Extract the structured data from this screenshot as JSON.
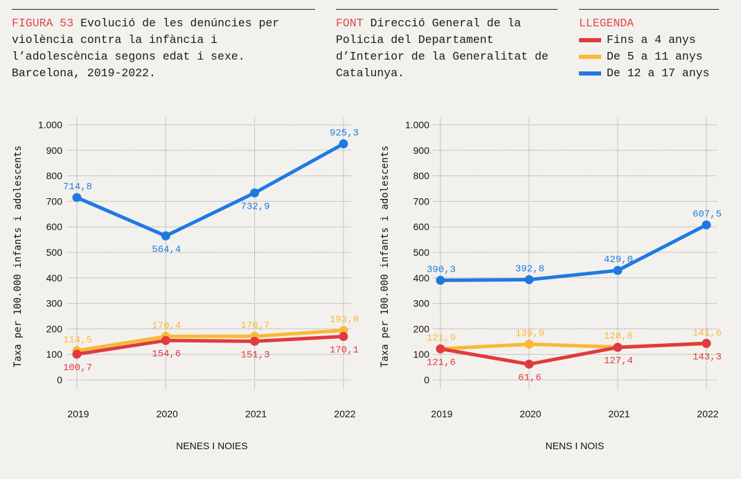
{
  "header": {
    "figure_tag": "FIGURA 53",
    "title": "Evolució de les denúncies per violència contra la infància i l’adolescència segons edat i sexe. Barcelona, 2019-2022.",
    "source_tag": "FONT",
    "source": "Direcció General de la Policia del Departament d’Interior de la Generalitat de Catalunya.",
    "legend_title": "LLEGENDA",
    "legend": [
      {
        "label": "Fins a 4 anys",
        "color": "#e03a3e"
      },
      {
        "label": "De 5 a 11 anys",
        "color": "#f9b934"
      },
      {
        "label": "De 12 a 17 anys",
        "color": "#1f7ae0"
      }
    ]
  },
  "chart_data": [
    {
      "type": "line",
      "title": "NENES I NOIES",
      "xlabel": "NENES I NOIES",
      "ylabel": "Taxa per 100.000 infants i adolescents",
      "categories": [
        "2019",
        "2020",
        "2021",
        "2022"
      ],
      "ylim": [
        0,
        1000
      ],
      "yticks": [
        "0",
        "100",
        "200",
        "300",
        "400",
        "500",
        "600",
        "700",
        "800",
        "900",
        "1.000"
      ],
      "grid": true,
      "series": [
        {
          "name": "Fins a 4 anys",
          "color": "#e03a3e",
          "values": [
            100.7,
            154.6,
            151.3,
            170.1
          ],
          "labels": [
            "100,7",
            "154,6",
            "151,3",
            "170,1"
          ],
          "label_pos": [
            "below",
            "below",
            "below",
            "below"
          ]
        },
        {
          "name": "De 5 a 11 anys",
          "color": "#f9b934",
          "values": [
            114.5,
            170.4,
            170.7,
            193.8
          ],
          "labels": [
            "114,5",
            "170,4",
            "170,7",
            "193,8"
          ],
          "label_pos": [
            "above",
            "above",
            "above",
            "above"
          ]
        },
        {
          "name": "De 12 a 17 anys",
          "color": "#1f7ae0",
          "values": [
            714.8,
            564.4,
            732.9,
            925.3
          ],
          "labels": [
            "714,8",
            "564,4",
            "732,9",
            "925,3"
          ],
          "label_pos": [
            "above",
            "below",
            "below",
            "above"
          ]
        }
      ]
    },
    {
      "type": "line",
      "title": "NENS I NOIS",
      "xlabel": "NENS I NOIS",
      "ylabel": "Taxa per 100.000 infants i adolescents",
      "categories": [
        "2019",
        "2020",
        "2021",
        "2022"
      ],
      "ylim": [
        0,
        1000
      ],
      "yticks": [
        "0",
        "100",
        "200",
        "300",
        "400",
        "500",
        "600",
        "700",
        "800",
        "900",
        "1.000"
      ],
      "grid": true,
      "series": [
        {
          "name": "Fins a 4 anys",
          "color": "#e03a3e",
          "values": [
            121.6,
            61.6,
            127.4,
            143.3
          ],
          "labels": [
            "121,6",
            "61,6",
            "127,4",
            "143,3"
          ],
          "label_pos": [
            "below",
            "below",
            "below",
            "below"
          ]
        },
        {
          "name": "De 5 a 11 anys",
          "color": "#f9b934",
          "values": [
            121.9,
            139.9,
            128.6,
            141.6
          ],
          "labels": [
            "121,9",
            "139,9",
            "128,6",
            "141,6"
          ],
          "label_pos": [
            "above",
            "above",
            "above",
            "above"
          ]
        },
        {
          "name": "De 12 a 17 anys",
          "color": "#1f7ae0",
          "values": [
            390.3,
            392.8,
            429.0,
            607.5
          ],
          "labels": [
            "390,3",
            "392,8",
            "429,0",
            "607,5"
          ],
          "label_pos": [
            "above",
            "above",
            "above",
            "above"
          ]
        }
      ]
    }
  ]
}
